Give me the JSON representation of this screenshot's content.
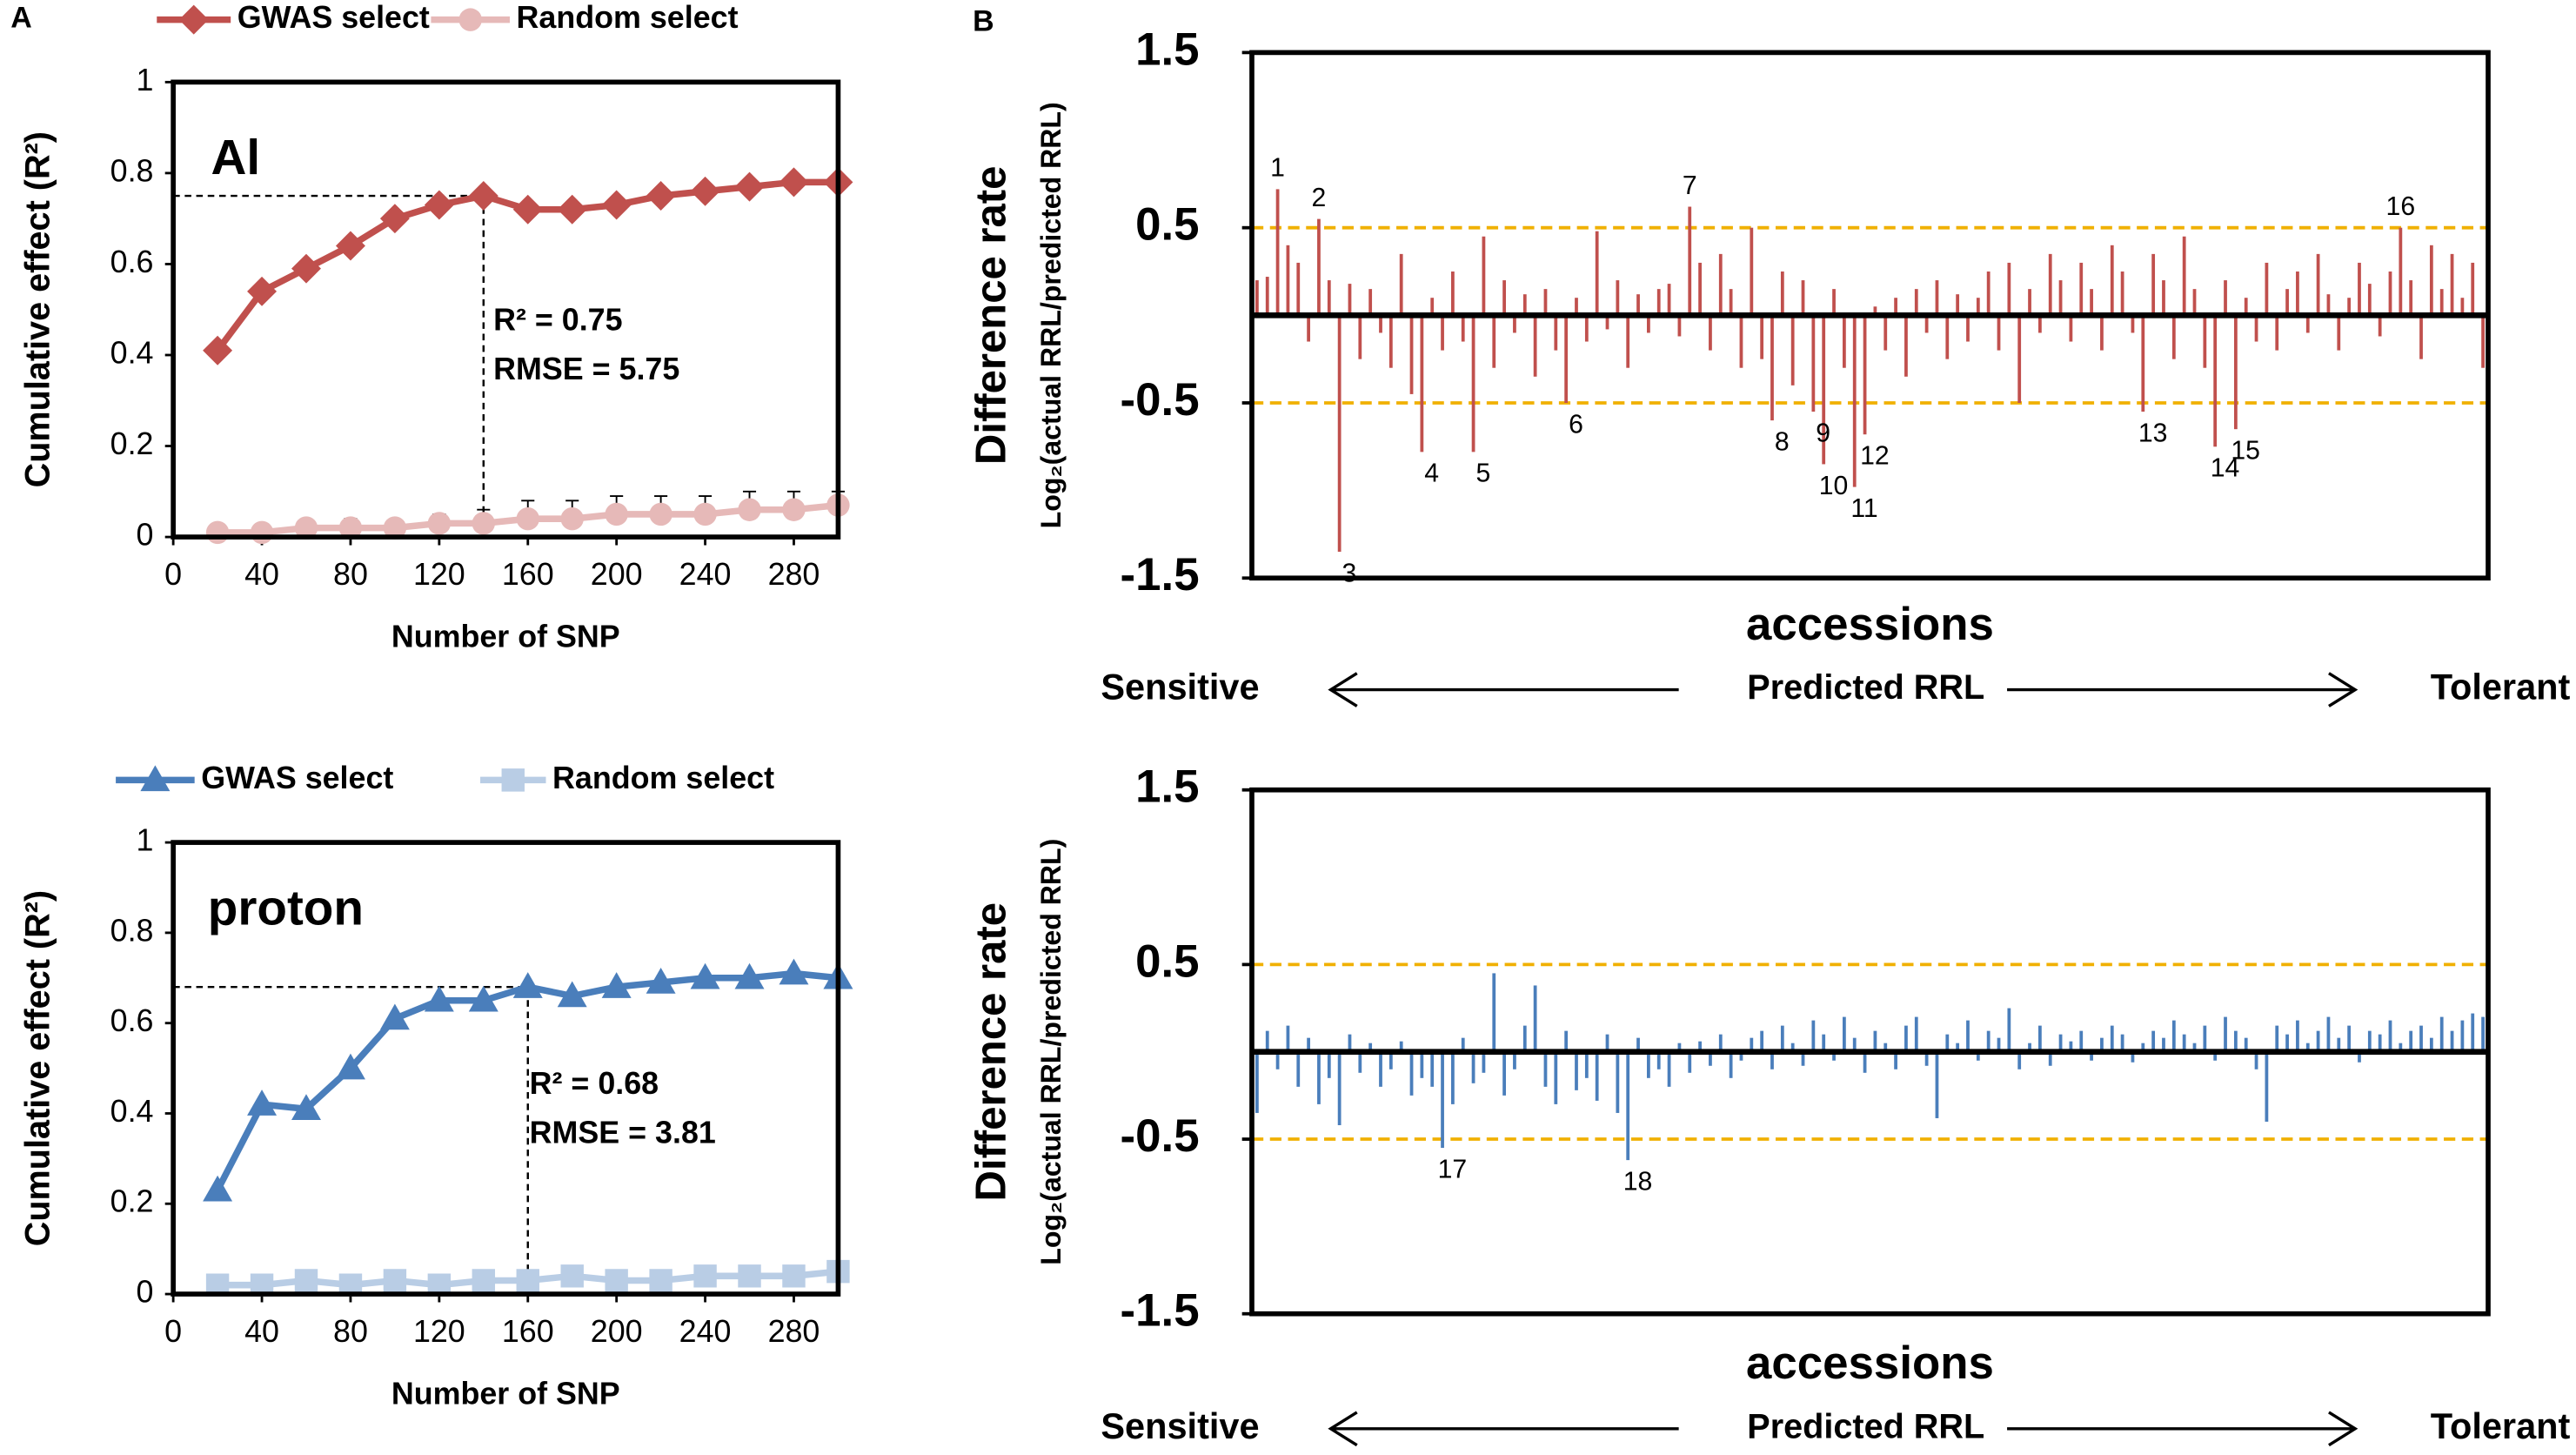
{
  "panel_labels": [
    "A",
    "B"
  ],
  "chart_data": [
    {
      "type": "line",
      "xlabel": "Number of SNP",
      "ylabel": "Cumulative effect (R²)",
      "x": [
        20,
        40,
        60,
        80,
        100,
        120,
        140,
        160,
        180,
        200,
        220,
        240,
        260,
        280,
        300
      ],
      "series": [
        {
          "name": "GWAS select",
          "color": "#c0504d",
          "marker": "diamond",
          "values": [
            0.41,
            0.54,
            0.59,
            0.64,
            0.7,
            0.73,
            0.75,
            0.72,
            0.72,
            0.73,
            0.75,
            0.76,
            0.77,
            0.78,
            0.78
          ]
        },
        {
          "name": "Random select",
          "color": "#e6b9b8",
          "marker": "circle",
          "values": [
            0.01,
            0.01,
            0.02,
            0.02,
            0.02,
            0.03,
            0.03,
            0.04,
            0.04,
            0.05,
            0.05,
            0.05,
            0.06,
            0.06,
            0.07
          ],
          "errors": [
            0.005,
            0.01,
            0.01,
            0.02,
            0.01,
            0.02,
            0.03,
            0.04,
            0.04,
            0.04,
            0.04,
            0.04,
            0.04,
            0.04,
            0.03
          ]
        }
      ],
      "annotations": [
        {
          "text": "Al",
          "color": "#c0504d"
        },
        {
          "text": "R² = 0.75",
          "color": "#000000"
        },
        {
          "text": "RMSE = 5.75",
          "color": "#000000"
        }
      ],
      "guide": {
        "x": 140,
        "y": 0.75
      },
      "xlim": [
        0,
        300
      ],
      "xticks": [
        0,
        40,
        80,
        120,
        160,
        200,
        240,
        280
      ],
      "ylim": [
        0,
        1
      ],
      "yticks": [
        0,
        0.2,
        0.4,
        0.6,
        0.8,
        1
      ]
    },
    {
      "type": "line",
      "xlabel": "Number of SNP",
      "ylabel": "Cumulative effect (R²)",
      "x": [
        20,
        40,
        60,
        80,
        100,
        120,
        140,
        160,
        180,
        200,
        220,
        240,
        260,
        280,
        300
      ],
      "series": [
        {
          "name": "GWAS select",
          "color": "#4a7ebb",
          "marker": "triangle",
          "values": [
            0.23,
            0.42,
            0.41,
            0.5,
            0.61,
            0.65,
            0.65,
            0.68,
            0.66,
            0.68,
            0.69,
            0.7,
            0.7,
            0.71,
            0.7
          ]
        },
        {
          "name": "Random select",
          "color": "#b9cde5",
          "marker": "square",
          "values": [
            0.02,
            0.02,
            0.03,
            0.02,
            0.03,
            0.02,
            0.03,
            0.03,
            0.04,
            0.03,
            0.03,
            0.04,
            0.04,
            0.04,
            0.05
          ]
        }
      ],
      "annotations": [
        {
          "text": "proton",
          "color": "#2e75b6"
        },
        {
          "text": "R² = 0.68",
          "color": "#000000"
        },
        {
          "text": "RMSE = 3.81",
          "color": "#000000"
        }
      ],
      "guide": {
        "x": 160,
        "y": 0.68
      },
      "xlim": [
        0,
        300
      ],
      "xticks": [
        0,
        40,
        80,
        120,
        160,
        200,
        240,
        280
      ],
      "ylim": [
        0,
        1
      ],
      "yticks": [
        0,
        0.2,
        0.4,
        0.6,
        0.8,
        1
      ]
    },
    {
      "type": "bar",
      "ylabel": "Difference rate",
      "ylabel2": "Log₂(actual RRL/predicted RRL)",
      "xlabel": "accessions",
      "scale_labels": [
        "Sensitive",
        "Predicted RRL",
        "Tolerant"
      ],
      "color": "#c0504d",
      "reference_color": "#f0b000",
      "reference_lines": [
        0.5,
        -0.5
      ],
      "values": [
        0.2,
        0.22,
        0.72,
        0.4,
        0.3,
        -0.15,
        0.55,
        0.2,
        -1.35,
        0.18,
        -0.25,
        0.15,
        -0.1,
        -0.3,
        0.35,
        -0.45,
        -0.78,
        0.1,
        -0.2,
        0.25,
        -0.15,
        -0.78,
        0.45,
        -0.3,
        0.2,
        -0.1,
        0.12,
        -0.35,
        0.15,
        -0.2,
        -0.5,
        0.1,
        -0.15,
        0.48,
        -0.08,
        0.2,
        -0.3,
        0.12,
        -0.1,
        0.15,
        0.18,
        -0.12,
        0.62,
        0.3,
        -0.2,
        0.35,
        0.15,
        -0.3,
        0.5,
        -0.25,
        -0.6,
        0.25,
        -0.4,
        0.2,
        -0.55,
        -0.85,
        0.15,
        -0.3,
        -0.98,
        -0.68,
        0.05,
        -0.2,
        0.1,
        -0.35,
        0.15,
        -0.1,
        0.2,
        -0.25,
        0.12,
        -0.15,
        0.1,
        0.25,
        -0.2,
        0.3,
        -0.5,
        0.15,
        -0.1,
        0.35,
        0.2,
        -0.15,
        0.3,
        0.15,
        -0.2,
        0.4,
        0.25,
        -0.1,
        -0.55,
        0.35,
        0.2,
        -0.25,
        0.45,
        0.15,
        -0.3,
        -0.75,
        0.2,
        -0.65,
        0.1,
        -0.15,
        0.3,
        -0.2,
        0.15,
        0.25,
        -0.1,
        0.35,
        0.12,
        -0.2,
        0.1,
        0.3,
        0.18,
        -0.12,
        0.25,
        0.5,
        0.2,
        -0.25,
        0.4,
        0.15,
        0.35,
        0.1,
        0.3,
        -0.3
      ],
      "annotations": [
        {
          "text": "1",
          "x": 2
        },
        {
          "text": "2",
          "x": 6
        },
        {
          "text": "3",
          "x": 8
        },
        {
          "text": "4",
          "x": 16
        },
        {
          "text": "5",
          "x": 21
        },
        {
          "text": "6",
          "x": 30
        },
        {
          "text": "7",
          "x": 42
        },
        {
          "text": "8",
          "x": 50
        },
        {
          "text": "9",
          "x": 54
        },
        {
          "text": "10",
          "x": 55
        },
        {
          "text": "11",
          "x": 58
        },
        {
          "text": "12",
          "x": 59
        },
        {
          "text": "13",
          "x": 86
        },
        {
          "text": "14",
          "x": 93
        },
        {
          "text": "15",
          "x": 95
        },
        {
          "text": "16",
          "x": 111
        }
      ],
      "ylim": [
        -1.5,
        1.5
      ],
      "yticks": [
        -1.5,
        -0.5,
        0.5,
        1.5
      ]
    },
    {
      "type": "bar",
      "ylabel": "Difference rate",
      "ylabel2": "Log₂(actual RRL/predicted RRL)",
      "xlabel": "accessions",
      "scale_labels": [
        "Sensitive",
        "Predicted RRL",
        "Tolerant"
      ],
      "color": "#4a7ebb",
      "reference_color": "#f0b000",
      "reference_lines": [
        0.5,
        -0.5
      ],
      "values": [
        -0.35,
        0.12,
        -0.1,
        0.15,
        -0.2,
        0.08,
        -0.3,
        -0.15,
        -0.42,
        0.1,
        -0.12,
        0.05,
        -0.2,
        -0.1,
        0.06,
        -0.25,
        -0.15,
        -0.2,
        -0.55,
        -0.3,
        0.08,
        -0.18,
        -0.12,
        0.45,
        -0.25,
        -0.1,
        0.15,
        0.38,
        -0.2,
        -0.3,
        0.12,
        -0.22,
        -0.15,
        -0.28,
        0.1,
        -0.35,
        -0.62,
        0.08,
        -0.15,
        -0.1,
        -0.2,
        0.05,
        -0.12,
        0.06,
        -0.08,
        0.1,
        -0.15,
        -0.05,
        0.08,
        0.12,
        -0.1,
        0.15,
        0.05,
        -0.08,
        0.18,
        0.1,
        -0.05,
        0.2,
        0.08,
        -0.12,
        0.12,
        0.05,
        -0.1,
        0.15,
        0.2,
        -0.08,
        -0.38,
        0.1,
        0.05,
        0.18,
        -0.05,
        0.12,
        0.08,
        0.25,
        -0.1,
        0.05,
        0.15,
        -0.08,
        0.1,
        0.06,
        0.12,
        -0.05,
        0.08,
        0.15,
        0.1,
        -0.06,
        0.05,
        0.12,
        0.08,
        0.18,
        0.1,
        0.05,
        0.15,
        -0.05,
        0.2,
        0.12,
        0.08,
        -0.1,
        -0.4,
        0.15,
        0.1,
        0.18,
        0.05,
        0.12,
        0.2,
        0.08,
        0.15,
        -0.06,
        0.12,
        0.1,
        0.18,
        0.05,
        0.12,
        0.15,
        0.08,
        0.2,
        0.12,
        0.18,
        0.22,
        0.2
      ],
      "annotations": [
        {
          "text": "17",
          "x": 18
        },
        {
          "text": "18",
          "x": 36
        }
      ],
      "ylim": [
        -1.5,
        1.5
      ],
      "yticks": [
        -1.5,
        -0.5,
        0.5,
        1.5
      ]
    }
  ]
}
